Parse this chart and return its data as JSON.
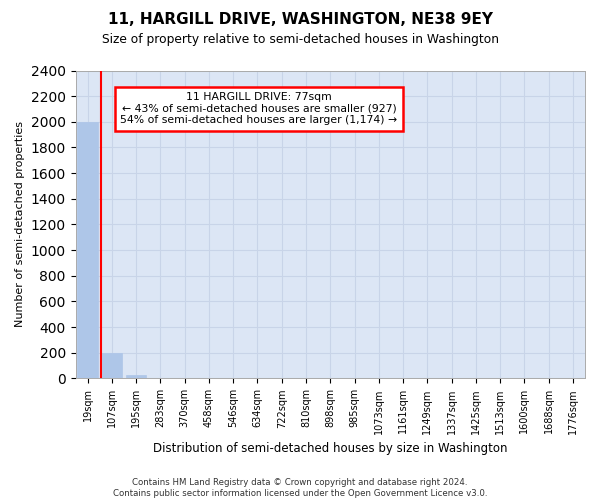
{
  "title": "11, HARGILL DRIVE, WASHINGTON, NE38 9EY",
  "subtitle": "Size of property relative to semi-detached houses in Washington",
  "xlabel": "Distribution of semi-detached houses by size in Washington",
  "ylabel": "Number of semi-detached properties",
  "property_label": "11 HARGILL DRIVE: 77sqm",
  "pct_smaller": 43,
  "pct_larger": 54,
  "n_smaller": 927,
  "n_larger": 1174,
  "bin_labels": [
    "19sqm",
    "107sqm",
    "195sqm",
    "283sqm",
    "370sqm",
    "458sqm",
    "546sqm",
    "634sqm",
    "722sqm",
    "810sqm",
    "898sqm",
    "985sqm",
    "1073sqm",
    "1161sqm",
    "1249sqm",
    "1337sqm",
    "1425sqm",
    "1513sqm",
    "1600sqm",
    "1688sqm",
    "1776sqm"
  ],
  "bar_values": [
    2000,
    200,
    25,
    3,
    1,
    1,
    0,
    0,
    0,
    0,
    0,
    0,
    0,
    0,
    0,
    0,
    0,
    0,
    0,
    0,
    0
  ],
  "bar_color": "#aec6e8",
  "red_line_x": 0.55,
  "ylim": [
    0,
    2400
  ],
  "yticks": [
    0,
    200,
    400,
    600,
    800,
    1000,
    1200,
    1400,
    1600,
    1800,
    2000,
    2200,
    2400
  ],
  "grid_color": "#c8d4e8",
  "background_color": "#dce6f5",
  "footer_line1": "Contains HM Land Registry data © Crown copyright and database right 2024.",
  "footer_line2": "Contains public sector information licensed under the Open Government Licence v3.0."
}
